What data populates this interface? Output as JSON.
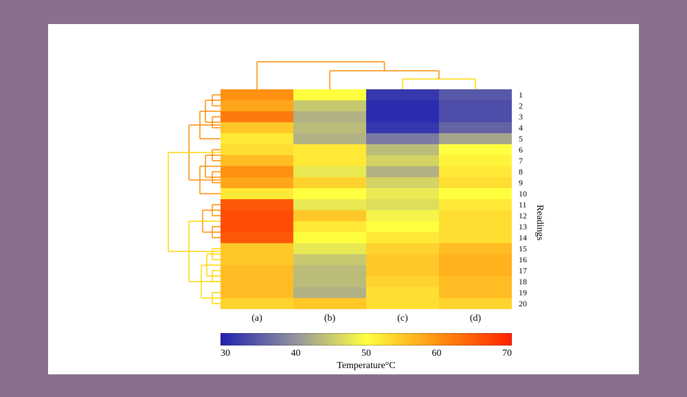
{
  "chart": {
    "type": "clustered-heatmap",
    "background_color": "#ffffff",
    "page_background": "#8a6f8f",
    "columns": [
      "(a)",
      "(b)",
      "(c)",
      "(d)"
    ],
    "row_labels": [
      "1",
      "2",
      "3",
      "4",
      "5",
      "6",
      "7",
      "8",
      "9",
      "10",
      "11",
      "12",
      "13",
      "14",
      "15",
      "16",
      "17",
      "18",
      "19",
      "20"
    ],
    "y_axis_label": "Readings",
    "values": [
      [
        60,
        50,
        32,
        35
      ],
      [
        58,
        45,
        31,
        34
      ],
      [
        62,
        43,
        31,
        34
      ],
      [
        55,
        44,
        32,
        36
      ],
      [
        52,
        43,
        38,
        42
      ],
      [
        53,
        52,
        44,
        50
      ],
      [
        56,
        52,
        46,
        51
      ],
      [
        60,
        48,
        43,
        52
      ],
      [
        58,
        54,
        46,
        53
      ],
      [
        52,
        50,
        48,
        50
      ],
      [
        65,
        48,
        47,
        52
      ],
      [
        66,
        55,
        49,
        53
      ],
      [
        66,
        52,
        50,
        53
      ],
      [
        65,
        50,
        52,
        53
      ],
      [
        55,
        48,
        54,
        56
      ],
      [
        55,
        45,
        55,
        57
      ],
      [
        56,
        44,
        55,
        57
      ],
      [
        56,
        44,
        54,
        56
      ],
      [
        56,
        43,
        53,
        56
      ],
      [
        54,
        55,
        53,
        54
      ]
    ],
    "colorbar": {
      "min": 30,
      "max": 70,
      "ticks": [
        30,
        40,
        50,
        60,
        70
      ],
      "label": "Temperature°C",
      "gradient_stops": [
        "#2020b0",
        "#9090a0",
        "#ffff40",
        "#ff9010",
        "#ff2000"
      ]
    },
    "dendrogram_top": {
      "color1": "#ff8c00",
      "color2": "#ffd700"
    },
    "dendrogram_left": {
      "color1": "#ff8c00",
      "color2": "#ffd700"
    },
    "label_fontsize": 14,
    "tick_fontsize": 12
  }
}
